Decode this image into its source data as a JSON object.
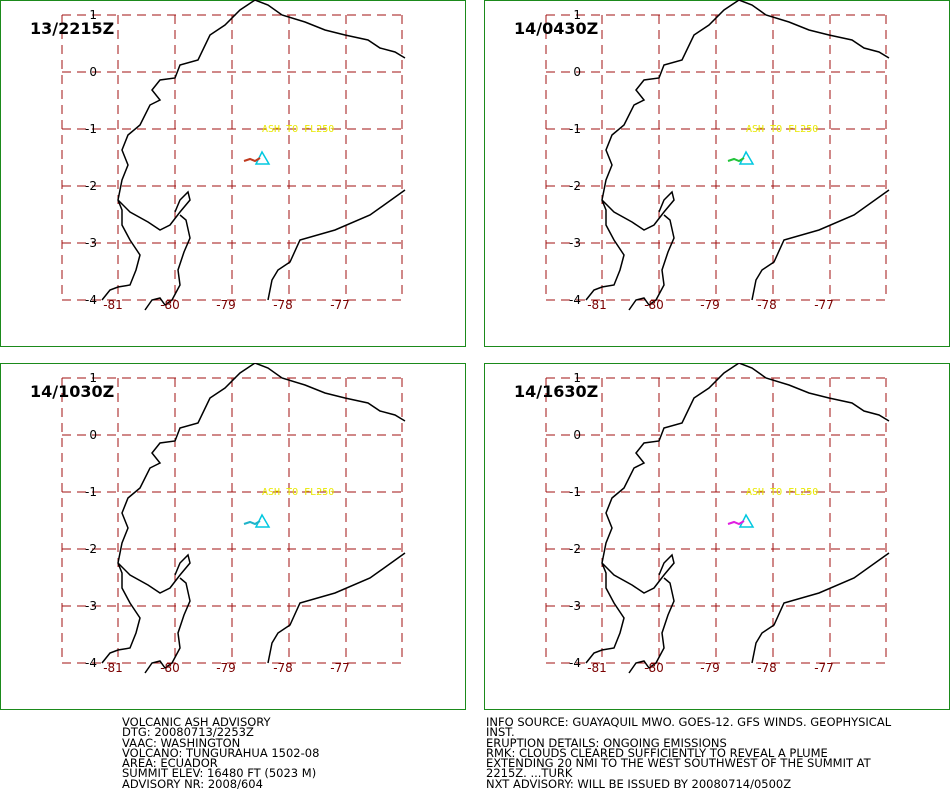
{
  "panels": [
    {
      "time_label": "13/2215Z",
      "plume_color": "#c03a1f"
    },
    {
      "time_label": "14/0430Z",
      "plume_color": "#22c43a"
    },
    {
      "time_label": "14/1030Z",
      "plume_color": "#1fb3c9"
    },
    {
      "time_label": "14/1630Z",
      "plume_color": "#e01ee0"
    }
  ],
  "map": {
    "lat_labels": [
      "1",
      "0",
      "-1",
      "-2",
      "-3",
      "-4"
    ],
    "lon_labels": [
      "-81",
      "-80",
      "-79",
      "-78",
      "-77"
    ],
    "ash_label": "ASH TO FL250",
    "colors": {
      "frame": "#1b8a1b",
      "grid": "#a01010",
      "coast": "#000000",
      "volcano": "#00c8e0",
      "ash_text": "#e8e800",
      "axis_text": "#000000",
      "lon_text": "#7a0000"
    }
  },
  "advisory_left": [
    "VOLCANIC ASH ADVISORY",
    "DTG: 20080713/2253Z",
    "VAAC: WASHINGTON",
    "VOLCANO: TUNGURAHUA 1502-08",
    "AREA: ECUADOR",
    "SUMMIT ELEV: 16480 FT (5023 M)",
    "ADVISORY NR: 2008/604"
  ],
  "advisory_right": [
    "INFO SOURCE: GUAYAQUIL MWO. GOES-12. GFS WINDS. GEOPHYSICAL",
    "INST.",
    "ERUPTION DETAILS: ONGOING EMISSIONS",
    "RMK: CLOUDS CLEARED SUFFICIENTLY TO REVEAL A PLUME",
    "EXTENDING 20 NMI TO THE WEST SOUTHWEST OF THE SUMMIT AT",
    "2215Z. ...TURK",
    "NXT ADVISORY: WILL BE ISSUED BY 20080714/0500Z"
  ]
}
